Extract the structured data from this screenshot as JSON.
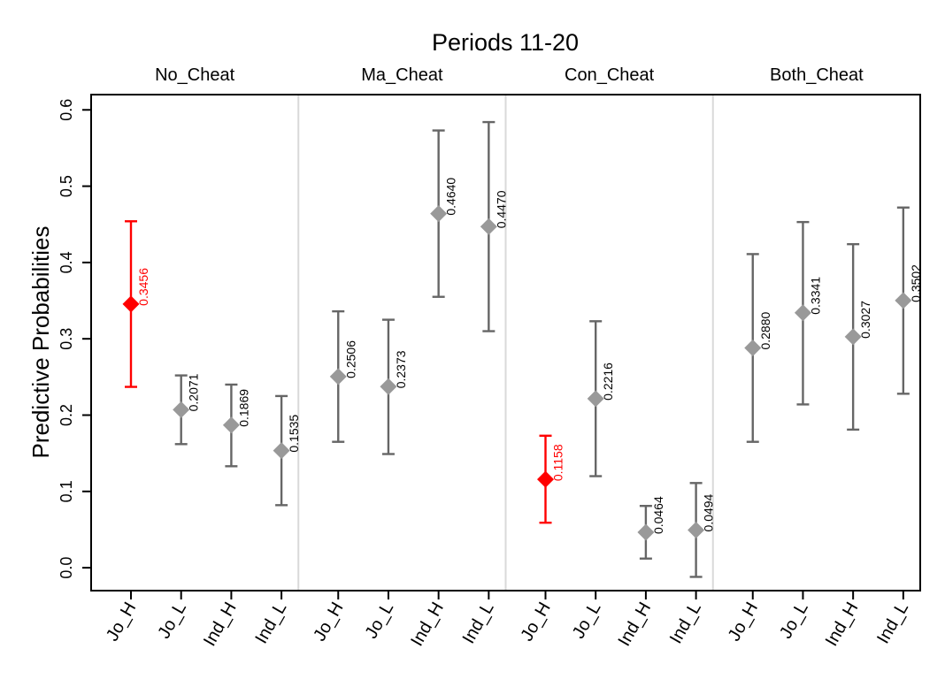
{
  "chart_data": {
    "type": "scatter",
    "title": "Periods 11-20",
    "ylabel": "Predictive Probabilities",
    "xlabel": "",
    "ylim": [
      -0.03,
      0.62
    ],
    "yticks": [
      0.0,
      0.1,
      0.2,
      0.3,
      0.4,
      0.5,
      0.6
    ],
    "ytick_labels": [
      "0.0",
      "0.1",
      "0.2",
      "0.3",
      "0.4",
      "0.5",
      "0.6"
    ],
    "grid": false,
    "colors": {
      "normal": "#999999",
      "bar": "#666666",
      "highlight": "#ff0000",
      "divider": "#d9d9d9",
      "axis": "#000000"
    },
    "panels": [
      {
        "name": "No_Cheat",
        "points": [
          {
            "category": "Jo_H",
            "value": 0.3456,
            "label": "0.3456",
            "lower": 0.237,
            "upper": 0.454,
            "highlight": true
          },
          {
            "category": "Jo_L",
            "value": 0.2071,
            "label": "0.2071",
            "lower": 0.162,
            "upper": 0.252,
            "highlight": false
          },
          {
            "category": "Ind_H",
            "value": 0.1869,
            "label": "0.1869",
            "lower": 0.133,
            "upper": 0.24,
            "highlight": false
          },
          {
            "category": "Ind_L",
            "value": 0.1535,
            "label": "0.1535",
            "lower": 0.082,
            "upper": 0.225,
            "highlight": false
          }
        ]
      },
      {
        "name": "Ma_Cheat",
        "points": [
          {
            "category": "Jo_H",
            "value": 0.2506,
            "label": "0.2506",
            "lower": 0.165,
            "upper": 0.336,
            "highlight": false
          },
          {
            "category": "Jo_L",
            "value": 0.2373,
            "label": "0.2373",
            "lower": 0.149,
            "upper": 0.325,
            "highlight": false
          },
          {
            "category": "Ind_H",
            "value": 0.464,
            "label": "0.4640",
            "lower": 0.355,
            "upper": 0.573,
            "highlight": false
          },
          {
            "category": "Ind_L",
            "value": 0.447,
            "label": "0.4470",
            "lower": 0.31,
            "upper": 0.584,
            "highlight": false
          }
        ]
      },
      {
        "name": "Con_Cheat",
        "points": [
          {
            "category": "Jo_H",
            "value": 0.1158,
            "label": "0.1158",
            "lower": 0.059,
            "upper": 0.173,
            "highlight": true
          },
          {
            "category": "Jo_L",
            "value": 0.2216,
            "label": "0.2216",
            "lower": 0.12,
            "upper": 0.323,
            "highlight": false
          },
          {
            "category": "Ind_H",
            "value": 0.0464,
            "label": "0.0464",
            "lower": 0.012,
            "upper": 0.081,
            "highlight": false
          },
          {
            "category": "Ind_L",
            "value": 0.0494,
            "label": "0.0494",
            "lower": -0.012,
            "upper": 0.111,
            "highlight": false
          }
        ]
      },
      {
        "name": "Both_Cheat",
        "points": [
          {
            "category": "Jo_H",
            "value": 0.288,
            "label": "0.2880",
            "lower": 0.165,
            "upper": 0.411,
            "highlight": false
          },
          {
            "category": "Jo_L",
            "value": 0.3341,
            "label": "0.3341",
            "lower": 0.214,
            "upper": 0.453,
            "highlight": false
          },
          {
            "category": "Ind_H",
            "value": 0.3027,
            "label": "0.3027",
            "lower": 0.181,
            "upper": 0.424,
            "highlight": false
          },
          {
            "category": "Ind_L",
            "value": 0.3502,
            "label": "0.3502",
            "lower": 0.228,
            "upper": 0.472,
            "highlight": false
          }
        ]
      }
    ]
  }
}
